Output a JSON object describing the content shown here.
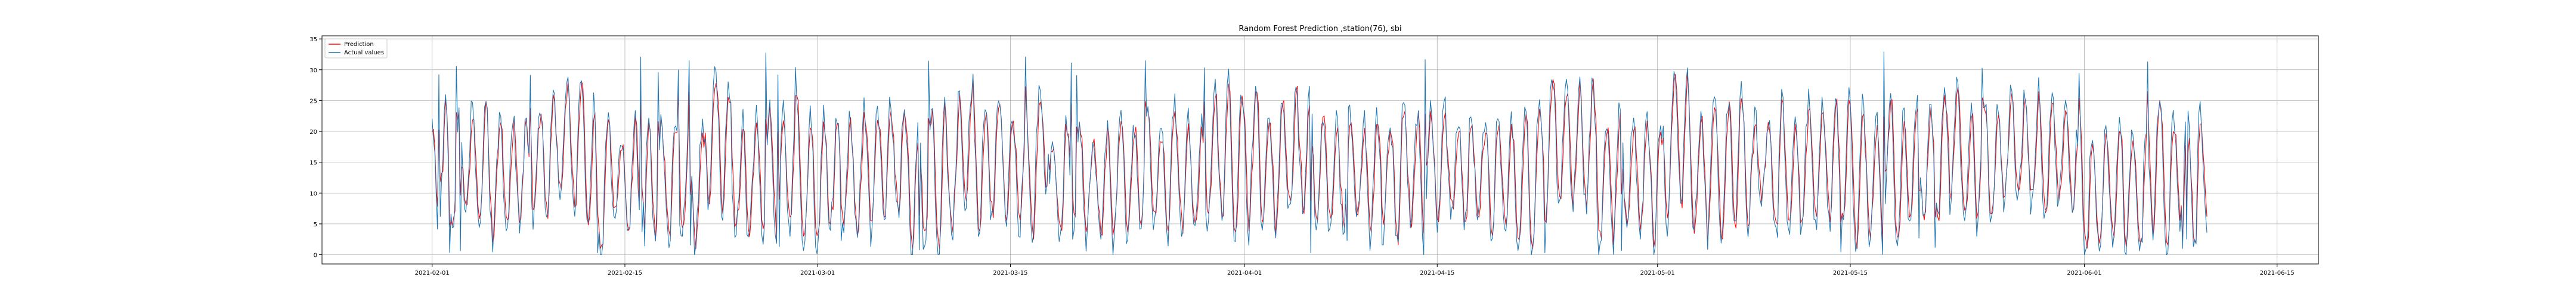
{
  "chart_data": {
    "type": "line",
    "title": "Random Forest Prediction ,station(76), sbi",
    "xlabel": "",
    "ylabel": "",
    "grid": true,
    "legend_position": "top-left",
    "x_range": [
      "2021-01-24",
      "2021-06-18"
    ],
    "xlim": [
      0,
      145
    ],
    "ylim": [
      -1.5,
      35.5
    ],
    "x_ticks": [
      {
        "label": "2021-02-01",
        "value": 8
      },
      {
        "label": "2021-02-15",
        "value": 22
      },
      {
        "label": "2021-03-01",
        "value": 36
      },
      {
        "label": "2021-03-15",
        "value": 50
      },
      {
        "label": "2021-04-01",
        "value": 67
      },
      {
        "label": "2021-04-15",
        "value": 81
      },
      {
        "label": "2021-05-01",
        "value": 97
      },
      {
        "label": "2021-05-15",
        "value": 111
      },
      {
        "label": "2021-06-01",
        "value": 128
      },
      {
        "label": "2021-06-15",
        "value": 142
      }
    ],
    "y_ticks": [
      {
        "label": "0",
        "value": 0
      },
      {
        "label": "5",
        "value": 5
      },
      {
        "label": "10",
        "value": 10
      },
      {
        "label": "15",
        "value": 15
      },
      {
        "label": "20",
        "value": 20
      },
      {
        "label": "25",
        "value": 25
      },
      {
        "label": "30",
        "value": 30
      },
      {
        "label": "35",
        "value": 35
      }
    ],
    "x_data_range": [
      "2021-02-01",
      "2021-06-11"
    ],
    "y_data_range": [
      0,
      34
    ],
    "series": [
      {
        "name": "Prediction",
        "color": "#ff0000",
        "approx_points": 1320
      },
      {
        "name": "Actual values",
        "color": "#1f77b4",
        "approx_points": 1320
      }
    ]
  }
}
